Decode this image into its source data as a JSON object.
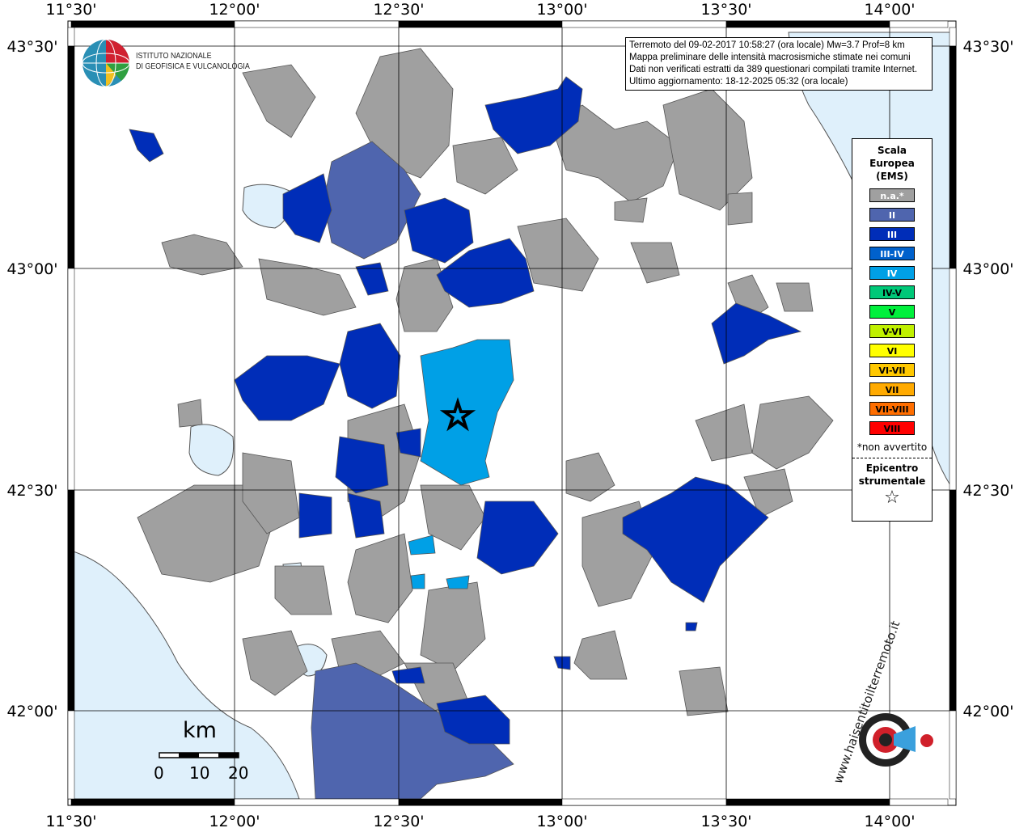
{
  "info_box": {
    "lines": [
      "Terremoto del 09-02-2017 10:58:27 (ora locale) Mw=3.7 Prof=8 km",
      "Mappa preliminare delle intensità macrosismiche stimate nei comuni",
      "Dati non verificati estratti da 389 questionari compilati tramite Internet.",
      "Ultimo aggiornamento: 18-12-2025 05:32 (ora locale)"
    ]
  },
  "logo": {
    "org": [
      "ISTITUTO NAZIONALE",
      "DI GEOFISICA E VULCANOLOGIA"
    ],
    "site": "www.haisentitoilterremoto.it"
  },
  "axes": {
    "longitude_labels": [
      "11°30'",
      "12°00'",
      "12°30'",
      "13°00'",
      "13°30'",
      "14°00'"
    ],
    "latitude_labels": [
      "43°30'",
      "43°00'",
      "42°30'",
      "42°00'"
    ]
  },
  "legend": {
    "title": [
      "Scala",
      "Europea",
      "(EMS)"
    ],
    "classes": [
      {
        "label": "n.a.*",
        "color": "#a0a0a0",
        "text_color": "#ffffff"
      },
      {
        "label": "II",
        "color": "#4f65ae",
        "text_color": "#ffffff"
      },
      {
        "label": "III",
        "color": "#002db8",
        "text_color": "#ffffff"
      },
      {
        "label": "III-IV",
        "color": "#0061cc",
        "text_color": "#ffffff"
      },
      {
        "label": "IV",
        "color": "#00a0e6",
        "text_color": "#ffffff"
      },
      {
        "label": "IV-V",
        "color": "#00c878",
        "text_color": "#000000"
      },
      {
        "label": "V",
        "color": "#00f03c",
        "text_color": "#000000"
      },
      {
        "label": "V-VI",
        "color": "#c0f000",
        "text_color": "#000000"
      },
      {
        "label": "VI",
        "color": "#ffff00",
        "text_color": "#000000"
      },
      {
        "label": "VI-VII",
        "color": "#ffc800",
        "text_color": "#000000"
      },
      {
        "label": "VII",
        "color": "#ffaa00",
        "text_color": "#000000"
      },
      {
        "label": "VII-VIII",
        "color": "#ff6e00",
        "text_color": "#000000"
      },
      {
        "label": "VIII",
        "color": "#ff0000",
        "text_color": "#000000"
      }
    ],
    "note": "*non avvertito",
    "epicenter_label": [
      "Epicentro",
      "strumentale"
    ],
    "epicenter_symbol": "☆"
  },
  "scale_bar": {
    "unit": "km",
    "ticks": [
      "0",
      "10",
      "20"
    ]
  },
  "colors": {
    "sea": "#dff0fb",
    "na": "#a0a0a0",
    "II": "#4f65ae",
    "III": "#002db8",
    "IV": "#00a0e6"
  }
}
